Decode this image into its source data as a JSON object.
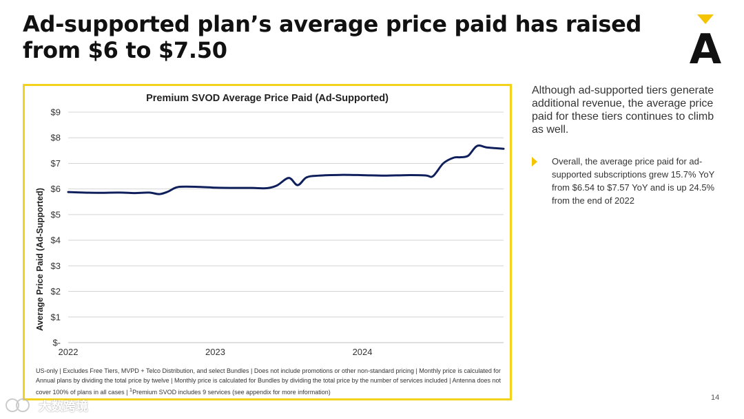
{
  "slide": {
    "title_line1": "Ad-supported plan’s average price paid has raised",
    "title_line2": "from $6 to $7.50",
    "page_number": "14",
    "watermark_text": "大数跨境",
    "logo_letter": "A",
    "colors": {
      "accent_yellow": "#f4d21b",
      "line_navy": "#0f1f5c"
    }
  },
  "side_panel": {
    "summary": "Although ad-supported tiers generate additional revenue, the average price paid for these tiers continues to climb as well.",
    "bullet": "Overall, the average price paid for ad-supported subscriptions grew 15.7% YoY from $6.54 to $7.57 YoY and is up 24.5% from the end of 2022"
  },
  "footnote": {
    "text": "US-only | Excludes Free Tiers, MVPD + Telco Distribution, and select Bundles | Does not include promotions or other non-standard pricing | Monthly price is calculated for Annual plans by dividing the total price by twelve | Monthly price is calculated for Bundles by dividing the total price by the number of services included | Antenna does not cover 100% of plans in all cases | ",
    "superscript": "1",
    "text_end": "Premium SVOD includes 9 services (see appendix for more information)"
  },
  "chart_data": {
    "type": "line",
    "title": "Premium SVOD Average Price Paid (Ad-Supported)",
    "xlabel": "",
    "ylabel": "Average Price Paid (Ad-Supported)",
    "ylim": [
      0,
      9
    ],
    "xlim": [
      2022.0,
      2024.96
    ],
    "y_ticks": [
      {
        "value": 0,
        "label": "$-"
      },
      {
        "value": 1,
        "label": "$1"
      },
      {
        "value": 2,
        "label": "$2"
      },
      {
        "value": 3,
        "label": "$3"
      },
      {
        "value": 4,
        "label": "$4"
      },
      {
        "value": 5,
        "label": "$5"
      },
      {
        "value": 6,
        "label": "$6"
      },
      {
        "value": 7,
        "label": "$7"
      },
      {
        "value": 8,
        "label": "$8"
      },
      {
        "value": 9,
        "label": "$9"
      }
    ],
    "x_ticks": [
      {
        "value": 2022.0,
        "label": "2022"
      },
      {
        "value": 2023.0,
        "label": "2023"
      },
      {
        "value": 2024.0,
        "label": "2024"
      }
    ],
    "grid": true,
    "series": [
      {
        "name": "Average Price Paid (Ad-Supported)",
        "x": [
          2022.0,
          2022.1,
          2022.2,
          2022.35,
          2022.45,
          2022.55,
          2022.62,
          2022.68,
          2022.75,
          2022.9,
          2023.0,
          2023.12,
          2023.25,
          2023.35,
          2023.42,
          2023.5,
          2023.56,
          2023.62,
          2023.7,
          2023.85,
          2024.0,
          2024.15,
          2024.3,
          2024.43,
          2024.48,
          2024.55,
          2024.62,
          2024.67,
          2024.72,
          2024.78,
          2024.85,
          2024.96
        ],
        "values": [
          5.88,
          5.86,
          5.85,
          5.86,
          5.84,
          5.86,
          5.8,
          5.9,
          6.08,
          6.08,
          6.05,
          6.04,
          6.04,
          6.03,
          6.14,
          6.43,
          6.15,
          6.45,
          6.52,
          6.55,
          6.54,
          6.52,
          6.54,
          6.53,
          6.5,
          7.0,
          7.22,
          7.24,
          7.3,
          7.68,
          7.62,
          7.57
        ]
      }
    ]
  }
}
